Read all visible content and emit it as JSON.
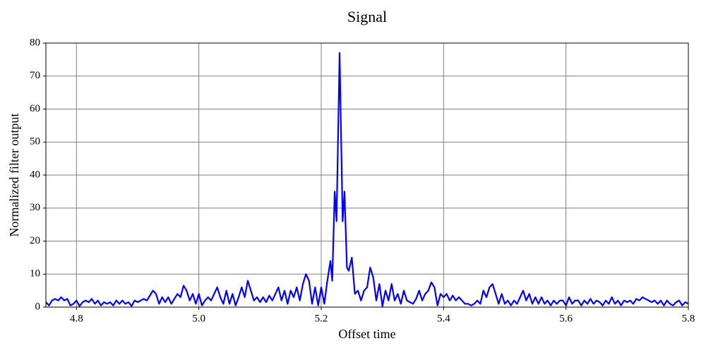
{
  "chart_data": {
    "type": "line",
    "title": "Signal",
    "x_label": "Offset time",
    "y_label": "Normalized filter output",
    "x": [
      4.75,
      4.755,
      4.76,
      4.765,
      4.77,
      4.775,
      4.78,
      4.785,
      4.79,
      4.795,
      4.8,
      4.805,
      4.81,
      4.815,
      4.82,
      4.825,
      4.83,
      4.835,
      4.84,
      4.845,
      4.85,
      4.855,
      4.86,
      4.865,
      4.87,
      4.875,
      4.88,
      4.885,
      4.89,
      4.895,
      4.9,
      4.905,
      4.91,
      4.915,
      4.92,
      4.925,
      4.93,
      4.935,
      4.94,
      4.945,
      4.95,
      4.955,
      4.96,
      4.965,
      4.97,
      4.975,
      4.98,
      4.985,
      4.99,
      4.995,
      5.0,
      5.005,
      5.01,
      5.015,
      5.02,
      5.025,
      5.03,
      5.035,
      5.04,
      5.045,
      5.05,
      5.055,
      5.06,
      5.065,
      5.07,
      5.075,
      5.08,
      5.085,
      5.09,
      5.095,
      5.1,
      5.105,
      5.11,
      5.115,
      5.12,
      5.125,
      5.13,
      5.135,
      5.14,
      5.145,
      5.15,
      5.155,
      5.16,
      5.165,
      5.17,
      5.175,
      5.18,
      5.185,
      5.19,
      5.195,
      5.2,
      5.205,
      5.21,
      5.215,
      5.218,
      5.222,
      5.225,
      5.23,
      5.235,
      5.238,
      5.242,
      5.245,
      5.25,
      5.255,
      5.26,
      5.265,
      5.27,
      5.275,
      5.28,
      5.285,
      5.29,
      5.295,
      5.3,
      5.305,
      5.31,
      5.315,
      5.32,
      5.325,
      5.33,
      5.335,
      5.34,
      5.345,
      5.35,
      5.355,
      5.36,
      5.365,
      5.37,
      5.375,
      5.38,
      5.385,
      5.39,
      5.395,
      5.4,
      5.405,
      5.41,
      5.415,
      5.42,
      5.425,
      5.43,
      5.435,
      5.44,
      5.445,
      5.45,
      5.455,
      5.46,
      5.465,
      5.47,
      5.475,
      5.48,
      5.485,
      5.49,
      5.495,
      5.5,
      5.505,
      5.51,
      5.515,
      5.52,
      5.525,
      5.53,
      5.535,
      5.54,
      5.545,
      5.55,
      5.555,
      5.56,
      5.565,
      5.57,
      5.575,
      5.58,
      5.585,
      5.59,
      5.595,
      5.6,
      5.605,
      5.61,
      5.615,
      5.62,
      5.625,
      5.63,
      5.635,
      5.64,
      5.645,
      5.65,
      5.655,
      5.66,
      5.665,
      5.67,
      5.675,
      5.68,
      5.685,
      5.69,
      5.695,
      5.7,
      5.705,
      5.71,
      5.715,
      5.72,
      5.725,
      5.73,
      5.735,
      5.74,
      5.745,
      5.75,
      5.755,
      5.76,
      5.765,
      5.77,
      5.775,
      5.78,
      5.785,
      5.79,
      5.795,
      5.8
    ],
    "series": [
      {
        "name": "Signal",
        "color": "#0000ff",
        "values": [
          1.5,
          0.5,
          2,
          2.5,
          2,
          3,
          2,
          2.5,
          0.5,
          1,
          2,
          0.3,
          1.5,
          2,
          1.5,
          2.5,
          1,
          2,
          0.5,
          1.5,
          1,
          1.5,
          0.5,
          2,
          1,
          2,
          1,
          1.5,
          0.3,
          2,
          1.5,
          2,
          2.5,
          2,
          3.5,
          5,
          4,
          1,
          3,
          1.5,
          3,
          1,
          2.5,
          4,
          3,
          6.5,
          5,
          2,
          4,
          1,
          4,
          0.5,
          2,
          3,
          2,
          4,
          6,
          3,
          1,
          5,
          1,
          4,
          0.5,
          3,
          6,
          3,
          8,
          5,
          2,
          3,
          1.5,
          3,
          1.5,
          3.5,
          2,
          4,
          6,
          2,
          5,
          1,
          5,
          3,
          6,
          2,
          7,
          10,
          8,
          1,
          6,
          0.5,
          6,
          1,
          8,
          14,
          8,
          35,
          26,
          77,
          26,
          35,
          12,
          11,
          15,
          4,
          5,
          2,
          5,
          6,
          12,
          9,
          2,
          7,
          0.3,
          5,
          2,
          7,
          2,
          4,
          1,
          5,
          2,
          1.5,
          1,
          2.5,
          5,
          2,
          4,
          5,
          7.5,
          6,
          0.5,
          4,
          3,
          4,
          2,
          3.5,
          2,
          3,
          2,
          1,
          1,
          0.5,
          1,
          2,
          1,
          5,
          3,
          6,
          7,
          4,
          1,
          4,
          1,
          2,
          0.5,
          2,
          1,
          3,
          5,
          2,
          4,
          1,
          3,
          1,
          3,
          1,
          2,
          0.5,
          2,
          1,
          2,
          2,
          0.5,
          3,
          1,
          2,
          2,
          0.5,
          2,
          1,
          2.5,
          1,
          2,
          1.5,
          0.5,
          2,
          1,
          3,
          1,
          2,
          0.5,
          2,
          1.5,
          2,
          1,
          2.5,
          2,
          3,
          2.5,
          2,
          1.5,
          2,
          1,
          2,
          0.5,
          2,
          1,
          0.5,
          1.5,
          2,
          0.5,
          1.5,
          1
        ]
      }
    ],
    "xlim": [
      4.75,
      5.8
    ],
    "ylim": [
      0,
      80
    ],
    "xticks": [
      4.8,
      {
        "value": 5,
        "label": "5.0"
      },
      5.2,
      5.4,
      5.6,
      5.8
    ],
    "yticks": [
      0,
      10,
      20,
      30,
      40,
      50,
      60,
      70,
      80
    ],
    "grid": true
  }
}
